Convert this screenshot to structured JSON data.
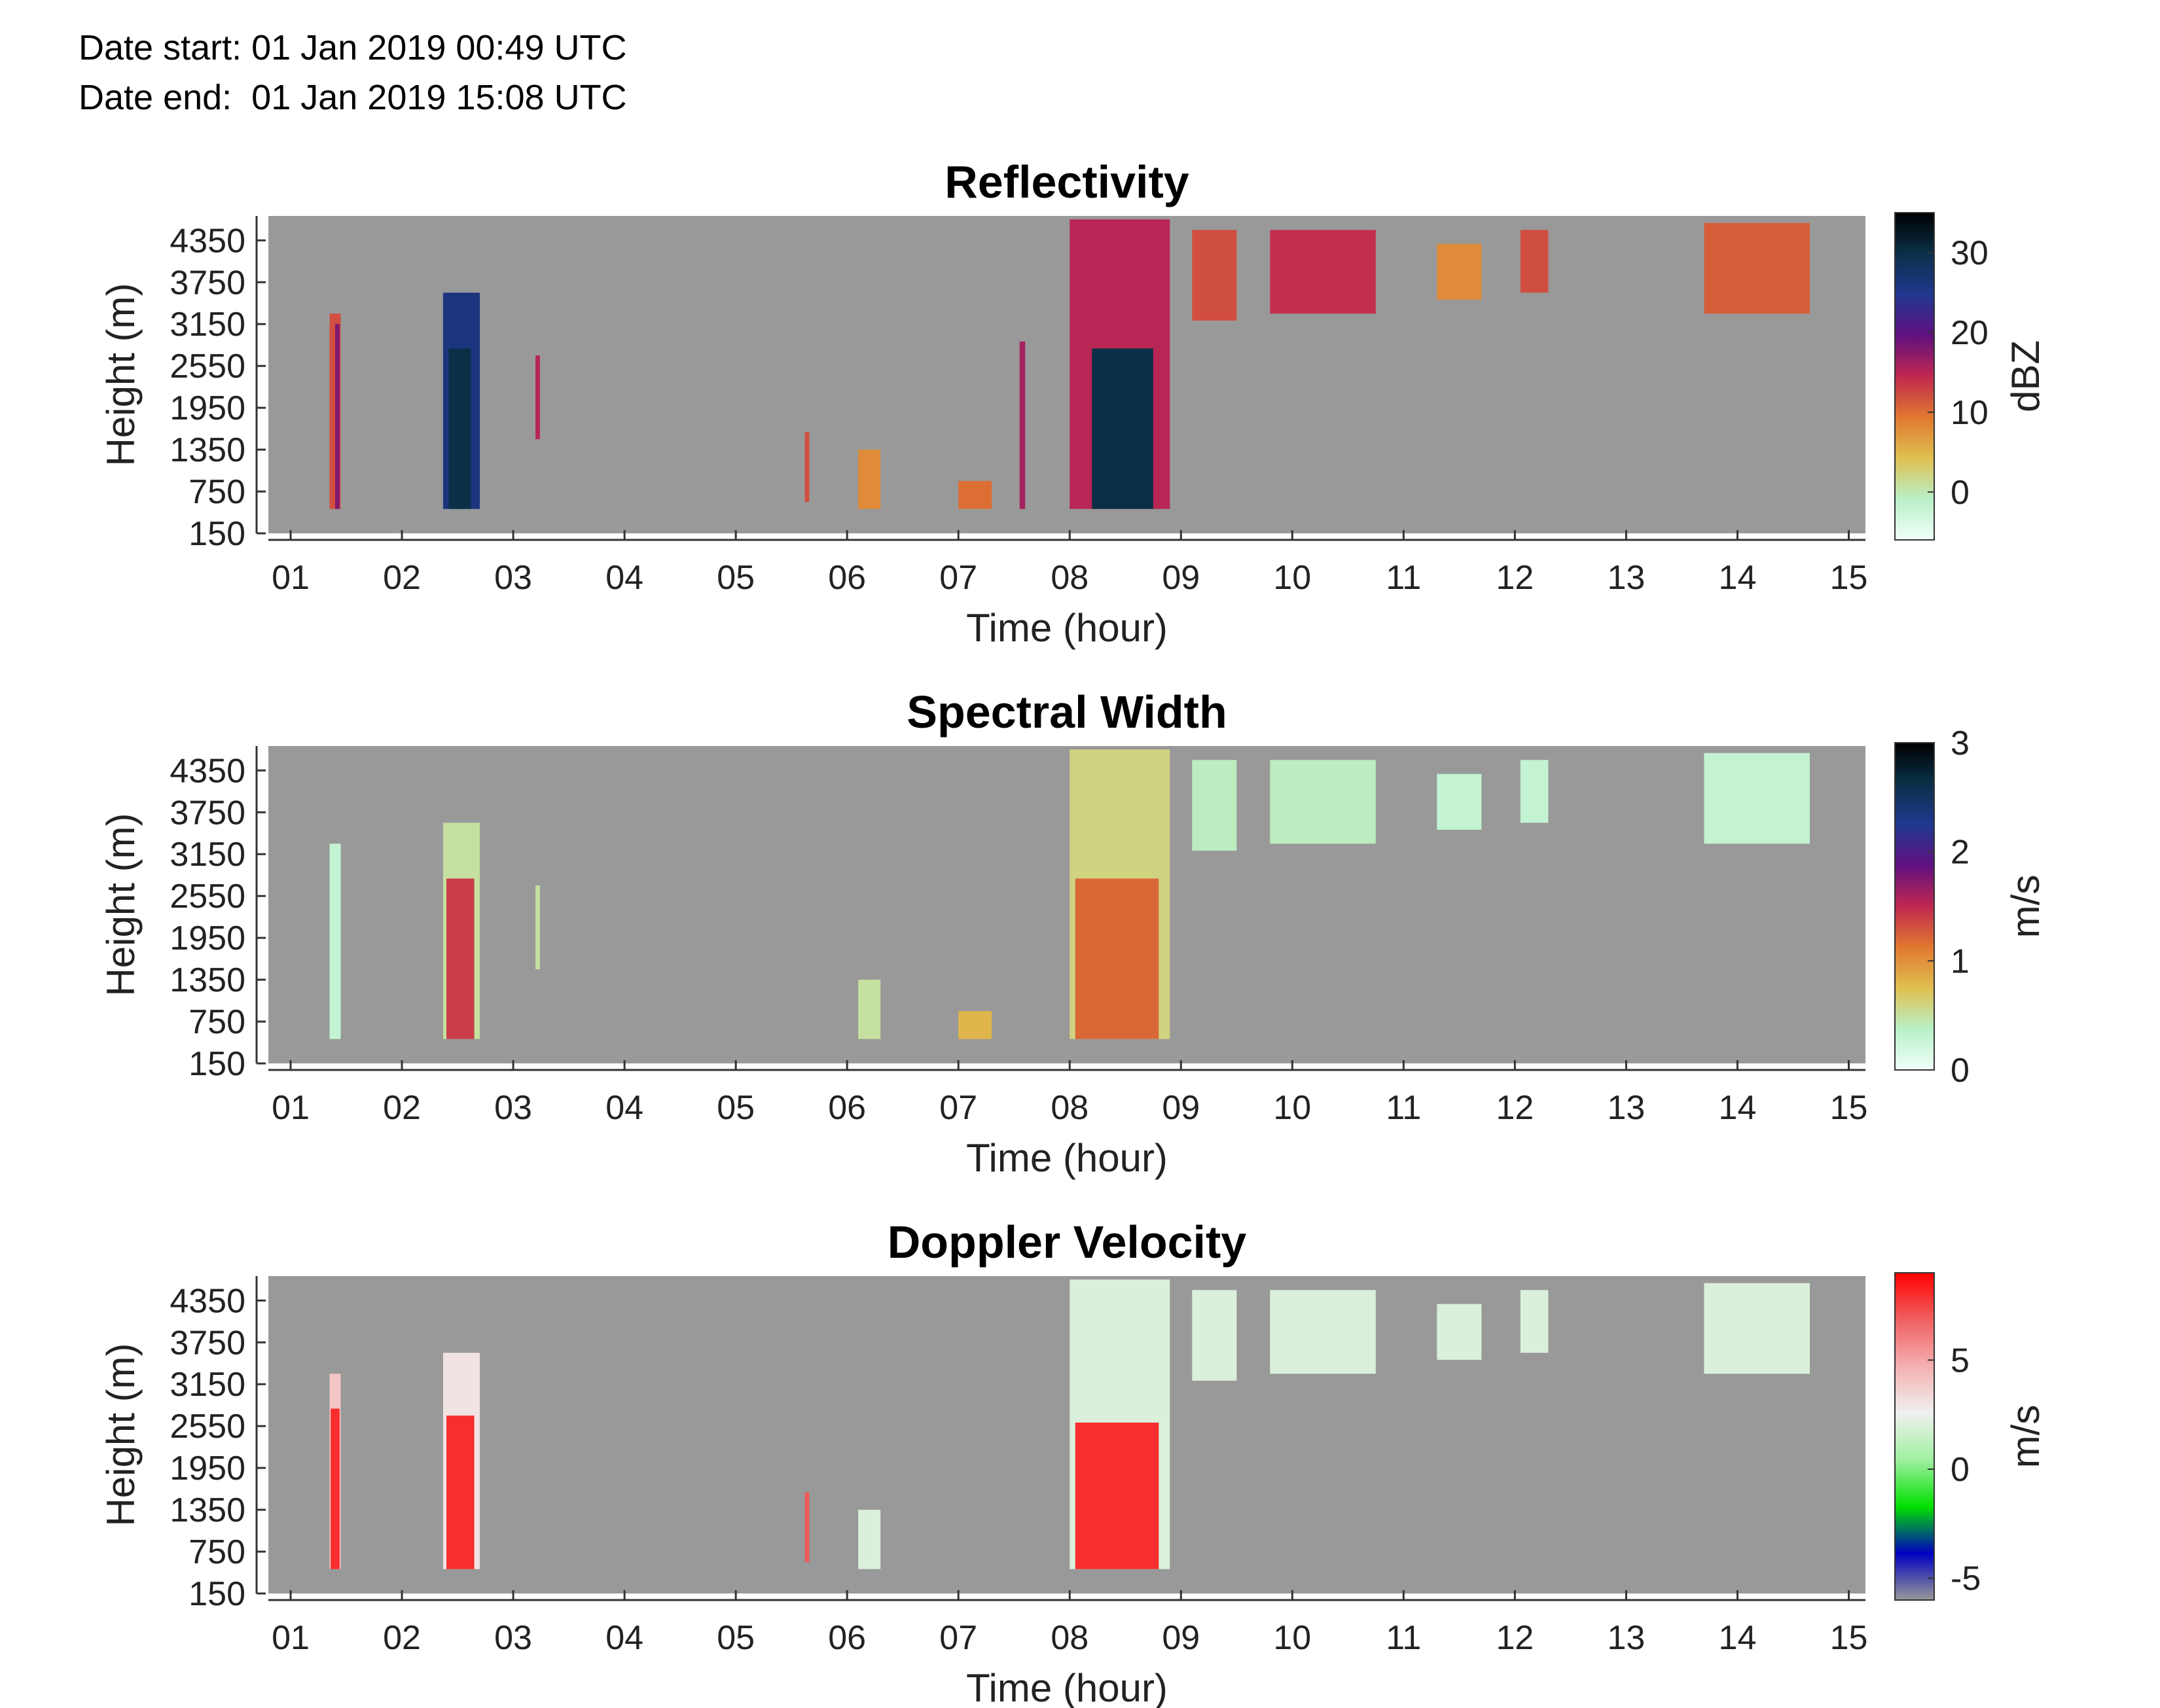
{
  "header": {
    "date_start": "Date start: 01 Jan 2019 00:49 UTC",
    "date_end": "Date end:  01 Jan 2019 15:08 UTC"
  },
  "chart_data": [
    {
      "type": "heatmap",
      "title": "Reflectivity",
      "xlabel": "Time (hour)",
      "ylabel": "Height (m)",
      "x_ticks": [
        "01",
        "02",
        "03",
        "04",
        "05",
        "06",
        "07",
        "08",
        "09",
        "10",
        "11",
        "12",
        "13",
        "14",
        "15"
      ],
      "y_ticks": [
        "150",
        "750",
        "1350",
        "1950",
        "2550",
        "3150",
        "3750",
        "4350"
      ],
      "xlim": [
        0.8,
        15.15
      ],
      "ylim": [
        150,
        4700
      ],
      "colorbar": {
        "label": "dBZ",
        "ticks": [
          "0",
          "10",
          "20",
          "30"
        ],
        "range": [
          -6,
          35
        ],
        "colormap": [
          "#f0fff8",
          "#b8f0c8",
          "#e0c050",
          "#e07830",
          "#c02850",
          "#601080",
          "#203890",
          "#0a3048",
          "#000000"
        ]
      },
      "background": "#999999",
      "value_range": [
        -6,
        35
      ],
      "cells": [
        {
          "t0": 1.35,
          "t1": 1.45,
          "h0": 500,
          "h1": 3300,
          "v": 12
        },
        {
          "t0": 1.4,
          "t1": 1.44,
          "h0": 500,
          "h1": 3150,
          "v": 18
        },
        {
          "t0": 2.37,
          "t1": 2.7,
          "h0": 500,
          "h1": 3600,
          "v": 26
        },
        {
          "t0": 2.42,
          "t1": 2.62,
          "h0": 500,
          "h1": 2800,
          "v": 30
        },
        {
          "t0": 3.2,
          "t1": 3.24,
          "h0": 1500,
          "h1": 2700,
          "v": 15
        },
        {
          "t0": 5.62,
          "t1": 5.66,
          "h0": 600,
          "h1": 1600,
          "v": 12
        },
        {
          "t0": 6.1,
          "t1": 6.3,
          "h0": 500,
          "h1": 1350,
          "v": 8
        },
        {
          "t0": 7.0,
          "t1": 7.3,
          "h0": 500,
          "h1": 900,
          "v": 10
        },
        {
          "t0": 7.55,
          "t1": 7.6,
          "h0": 500,
          "h1": 2900,
          "v": 16
        },
        {
          "t0": 8.0,
          "t1": 8.9,
          "h0": 500,
          "h1": 4650,
          "v": 15
        },
        {
          "t0": 8.2,
          "t1": 8.75,
          "h0": 500,
          "h1": 2800,
          "v": 30
        },
        {
          "t0": 9.1,
          "t1": 9.5,
          "h0": 3200,
          "h1": 4500,
          "v": 12
        },
        {
          "t0": 9.8,
          "t1": 10.75,
          "h0": 3300,
          "h1": 4500,
          "v": 14
        },
        {
          "t0": 11.3,
          "t1": 11.7,
          "h0": 3500,
          "h1": 4300,
          "v": 8
        },
        {
          "t0": 12.05,
          "t1": 12.3,
          "h0": 3600,
          "h1": 4500,
          "v": 12
        },
        {
          "t0": 13.7,
          "t1": 14.65,
          "h0": 3300,
          "h1": 4600,
          "v": 11
        }
      ]
    },
    {
      "type": "heatmap",
      "title": "Spectral Width",
      "xlabel": "Time (hour)",
      "ylabel": "Height (m)",
      "x_ticks": [
        "01",
        "02",
        "03",
        "04",
        "05",
        "06",
        "07",
        "08",
        "09",
        "10",
        "11",
        "12",
        "13",
        "14",
        "15"
      ],
      "y_ticks": [
        "150",
        "750",
        "1350",
        "1950",
        "2550",
        "3150",
        "3750",
        "4350"
      ],
      "xlim": [
        0.8,
        15.15
      ],
      "ylim": [
        150,
        4700
      ],
      "colorbar": {
        "label": "m/s",
        "ticks": [
          "0",
          "1",
          "2",
          "3"
        ],
        "range": [
          0,
          3
        ],
        "colormap": [
          "#f0fff8",
          "#b8f0c8",
          "#e0c050",
          "#e07830",
          "#c02850",
          "#601080",
          "#203890",
          "#0a3048",
          "#000000"
        ]
      },
      "background": "#999999",
      "value_range": [
        0,
        3
      ],
      "cells": [
        {
          "t0": 1.35,
          "t1": 1.45,
          "h0": 500,
          "h1": 3300,
          "v": 0.3
        },
        {
          "t0": 2.37,
          "t1": 2.7,
          "h0": 500,
          "h1": 3600,
          "v": 0.5
        },
        {
          "t0": 2.4,
          "t1": 2.65,
          "h0": 500,
          "h1": 2800,
          "v": 1.4
        },
        {
          "t0": 3.2,
          "t1": 3.24,
          "h0": 1500,
          "h1": 2700,
          "v": 0.5
        },
        {
          "t0": 6.1,
          "t1": 6.3,
          "h0": 500,
          "h1": 1350,
          "v": 0.5
        },
        {
          "t0": 7.0,
          "t1": 7.3,
          "h0": 500,
          "h1": 900,
          "v": 0.8
        },
        {
          "t0": 8.0,
          "t1": 8.9,
          "h0": 500,
          "h1": 4650,
          "v": 0.6
        },
        {
          "t0": 8.05,
          "t1": 8.8,
          "h0": 500,
          "h1": 2800,
          "v": 1.2
        },
        {
          "t0": 9.1,
          "t1": 9.5,
          "h0": 3200,
          "h1": 4500,
          "v": 0.4
        },
        {
          "t0": 9.8,
          "t1": 10.75,
          "h0": 3300,
          "h1": 4500,
          "v": 0.4
        },
        {
          "t0": 11.3,
          "t1": 11.7,
          "h0": 3500,
          "h1": 4300,
          "v": 0.3
        },
        {
          "t0": 12.05,
          "t1": 12.3,
          "h0": 3600,
          "h1": 4500,
          "v": 0.3
        },
        {
          "t0": 13.7,
          "t1": 14.65,
          "h0": 3300,
          "h1": 4600,
          "v": 0.3
        }
      ]
    },
    {
      "type": "heatmap",
      "title": "Doppler Velocity",
      "xlabel": "Time (hour)",
      "ylabel": "Height (m)",
      "x_ticks": [
        "01",
        "02",
        "03",
        "04",
        "05",
        "06",
        "07",
        "08",
        "09",
        "10",
        "11",
        "12",
        "13",
        "14",
        "15"
      ],
      "y_ticks": [
        "150",
        "750",
        "1350",
        "1950",
        "2550",
        "3150",
        "3750",
        "4350"
      ],
      "xlim": [
        0.8,
        15.15
      ],
      "ylim": [
        150,
        4700
      ],
      "colorbar": {
        "label": "m/s",
        "ticks": [
          "-5",
          "0",
          "5"
        ],
        "range": [
          -6,
          9
        ],
        "colormap": [
          "#999999",
          "#0000c0",
          "#00e000",
          "#a0f0a0",
          "#f0f0f0",
          "#f4b0b0",
          "#f06060",
          "#ff0000"
        ]
      },
      "background": "#999999",
      "value_range": [
        -6,
        9
      ],
      "cells": [
        {
          "t0": 1.35,
          "t1": 1.45,
          "h0": 500,
          "h1": 3300,
          "v": 4
        },
        {
          "t0": 1.36,
          "t1": 1.44,
          "h0": 500,
          "h1": 2800,
          "v": 8
        },
        {
          "t0": 2.37,
          "t1": 2.7,
          "h0": 500,
          "h1": 3600,
          "v": 3
        },
        {
          "t0": 2.4,
          "t1": 2.65,
          "h0": 500,
          "h1": 2700,
          "v": 8
        },
        {
          "t0": 5.62,
          "t1": 5.66,
          "h0": 600,
          "h1": 1600,
          "v": 7
        },
        {
          "t0": 6.1,
          "t1": 6.3,
          "h0": 500,
          "h1": 1350,
          "v": 2
        },
        {
          "t0": 8.0,
          "t1": 8.9,
          "h0": 500,
          "h1": 4650,
          "v": 2
        },
        {
          "t0": 8.05,
          "t1": 8.8,
          "h0": 500,
          "h1": 2600,
          "v": 8
        },
        {
          "t0": 9.1,
          "t1": 9.5,
          "h0": 3200,
          "h1": 4500,
          "v": 2
        },
        {
          "t0": 9.8,
          "t1": 10.75,
          "h0": 3300,
          "h1": 4500,
          "v": 2
        },
        {
          "t0": 11.3,
          "t1": 11.7,
          "h0": 3500,
          "h1": 4300,
          "v": 2
        },
        {
          "t0": 12.05,
          "t1": 12.3,
          "h0": 3600,
          "h1": 4500,
          "v": 2
        },
        {
          "t0": 13.7,
          "t1": 14.65,
          "h0": 3300,
          "h1": 4600,
          "v": 2
        }
      ]
    }
  ]
}
